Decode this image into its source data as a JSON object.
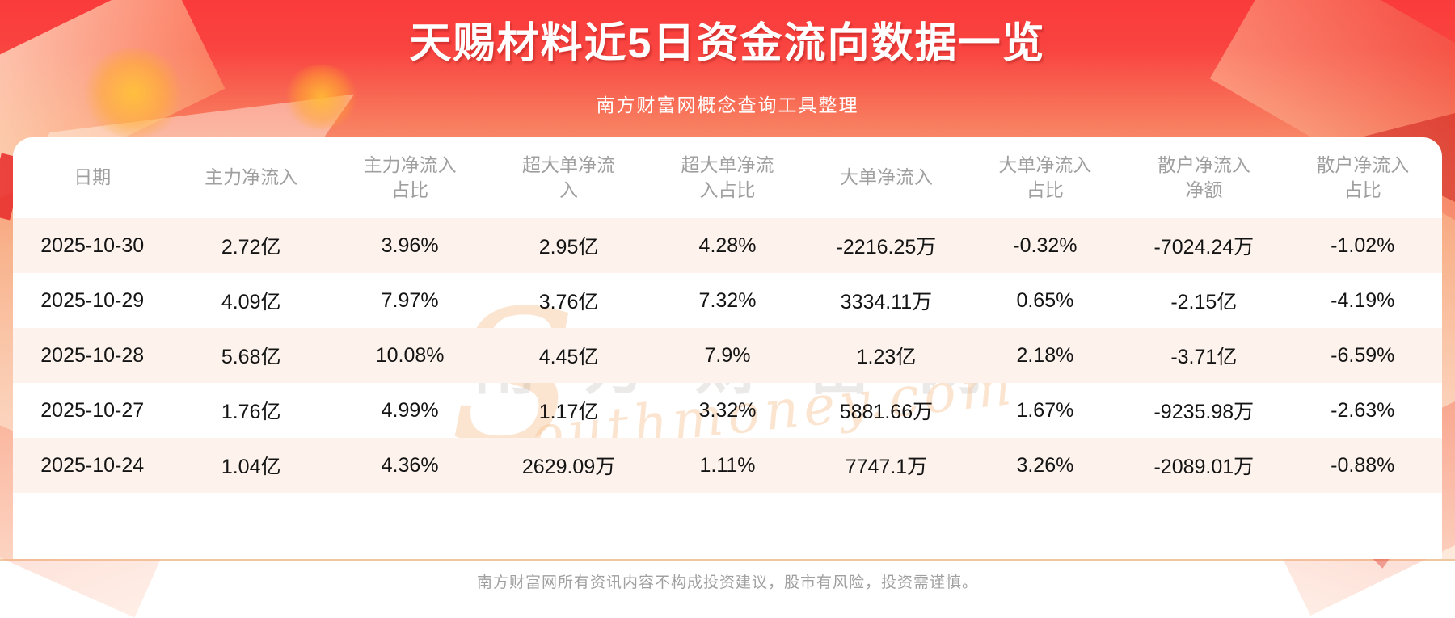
{
  "banner": {
    "title": "天赐材料近5日资金流向数据一览",
    "subtitle": "南方财富网概念查询工具整理"
  },
  "table": {
    "headers_display": [
      "日期",
      "主力净流入",
      "主力净流入\n占比",
      "超大单净流\n入",
      "超大单净流\n入占比",
      "大单净流入",
      "大单净流入\n占比",
      "散户净流入\n净额",
      "散户净流入\n占比"
    ]
  },
  "chart_data": {
    "type": "table",
    "title": "天赐材料近5日资金流向数据一览",
    "columns": [
      "日期",
      "主力净流入",
      "主力净流入占比",
      "超大单净流入",
      "超大单净流入占比",
      "大单净流入",
      "大单净流入占比",
      "散户净流入净额",
      "散户净流入占比"
    ],
    "rows": [
      [
        "2025-10-30",
        "2.72亿",
        "3.96%",
        "2.95亿",
        "4.28%",
        "-2216.25万",
        "-0.32%",
        "-7024.24万",
        "-1.02%"
      ],
      [
        "2025-10-29",
        "4.09亿",
        "7.97%",
        "3.76亿",
        "7.32%",
        "3334.11万",
        "0.65%",
        "-2.15亿",
        "-4.19%"
      ],
      [
        "2025-10-28",
        "5.68亿",
        "10.08%",
        "4.45亿",
        "7.9%",
        "1.23亿",
        "2.18%",
        "-3.71亿",
        "-6.59%"
      ],
      [
        "2025-10-27",
        "1.76亿",
        "4.99%",
        "1.17亿",
        "3.32%",
        "5881.66万",
        "1.67%",
        "-9235.98万",
        "-2.63%"
      ],
      [
        "2025-10-24",
        "1.04亿",
        "4.36%",
        "2629.09万",
        "1.11%",
        "7747.1万",
        "3.26%",
        "-2089.01万",
        "-0.88%"
      ]
    ]
  },
  "watermark": {
    "cn": "南方财富网",
    "script_initial": "S",
    "script_rest": "outhmoney.com"
  },
  "footer": {
    "disclaimer": "南方财富网所有资讯内容不构成投资建议，股市有风险，投资需谨慎。"
  },
  "colors": {
    "banner_red": "#fa3b3b",
    "banner_fade": "#fdeadc",
    "card_bg": "#ffffff",
    "alt_row_bg": "#fdf3ec",
    "header_text": "#9f9f9f",
    "cell_text": "#141414",
    "divider": "#f0c8a0",
    "footer_text": "#a0a0a0"
  }
}
